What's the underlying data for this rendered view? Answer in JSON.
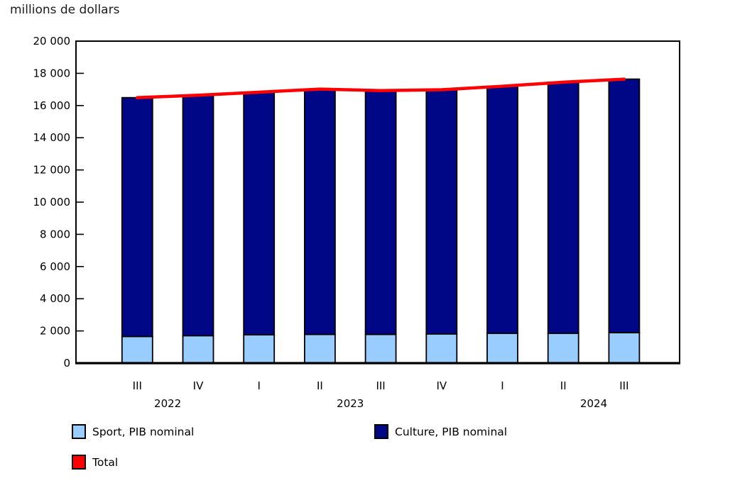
{
  "chart_data": {
    "type": "stacked-bar-with-line",
    "title": "millions de dollars",
    "categories": [
      "III",
      "IV",
      "I",
      "II",
      "III",
      "IV",
      "I",
      "II",
      "III"
    ],
    "years": [
      {
        "label": "2022",
        "between": [
          0,
          1
        ]
      },
      {
        "label": "2023",
        "between": [
          3,
          4
        ]
      },
      {
        "label": "2024",
        "between": [
          7,
          8
        ]
      }
    ],
    "ylim": [
      0,
      20000
    ],
    "ytick_step": 2000,
    "ytick_labels": [
      "0",
      "2 000",
      "4 000",
      "6 000",
      "8 000",
      "10 000",
      "12 000",
      "14 000",
      "16 000",
      "18 000",
      "20 000"
    ],
    "grid": false,
    "legend_position": "bottom-left",
    "axis_color": "#000000",
    "series": [
      {
        "name": "Sport, PIB nominal",
        "type": "bar",
        "color": "#99ccff",
        "values": [
          1650,
          1700,
          1760,
          1780,
          1780,
          1810,
          1850,
          1850,
          1890
        ]
      },
      {
        "name": "Culture, PIB nominal",
        "type": "bar",
        "color": "#000787",
        "values": [
          14840,
          14940,
          15070,
          15240,
          15150,
          15170,
          15350,
          15600,
          15750
        ]
      },
      {
        "name": "Total",
        "type": "line",
        "color": "#ff0000",
        "values": [
          16490,
          16640,
          16830,
          17020,
          16930,
          16980,
          17200,
          17450,
          17640
        ]
      }
    ]
  }
}
